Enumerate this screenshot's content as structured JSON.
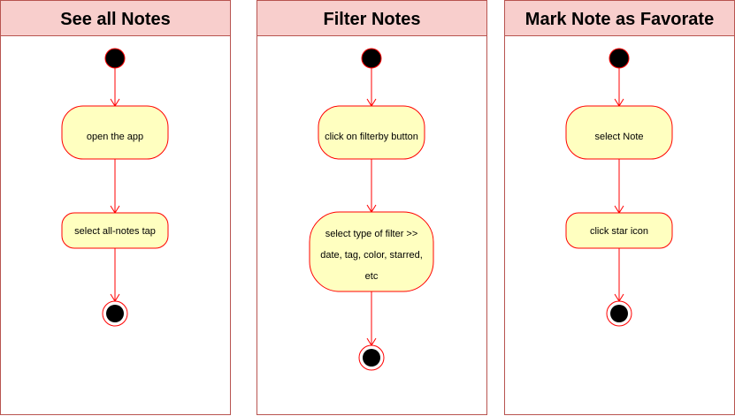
{
  "colors": {
    "lane_header_fill": "#f8cecc",
    "lane_border": "#b85450",
    "action_fill": "#ffffc0",
    "flow_stroke": "#ff0000",
    "node_fill": "#000000"
  },
  "lanes": [
    {
      "title": "See all Notes",
      "actions": [
        {
          "lines": [
            "open the app"
          ]
        },
        {
          "lines": [
            "select all-notes tap"
          ]
        }
      ]
    },
    {
      "title": "Filter Notes",
      "actions": [
        {
          "lines": [
            "click on filterby button"
          ]
        },
        {
          "lines": [
            "select type of filter >>",
            "date, tag, color, starred,",
            "etc"
          ]
        }
      ]
    },
    {
      "title": "Mark Note as Favorate",
      "actions": [
        {
          "lines": [
            "select Note"
          ]
        },
        {
          "lines": [
            "click star icon"
          ]
        }
      ]
    }
  ]
}
